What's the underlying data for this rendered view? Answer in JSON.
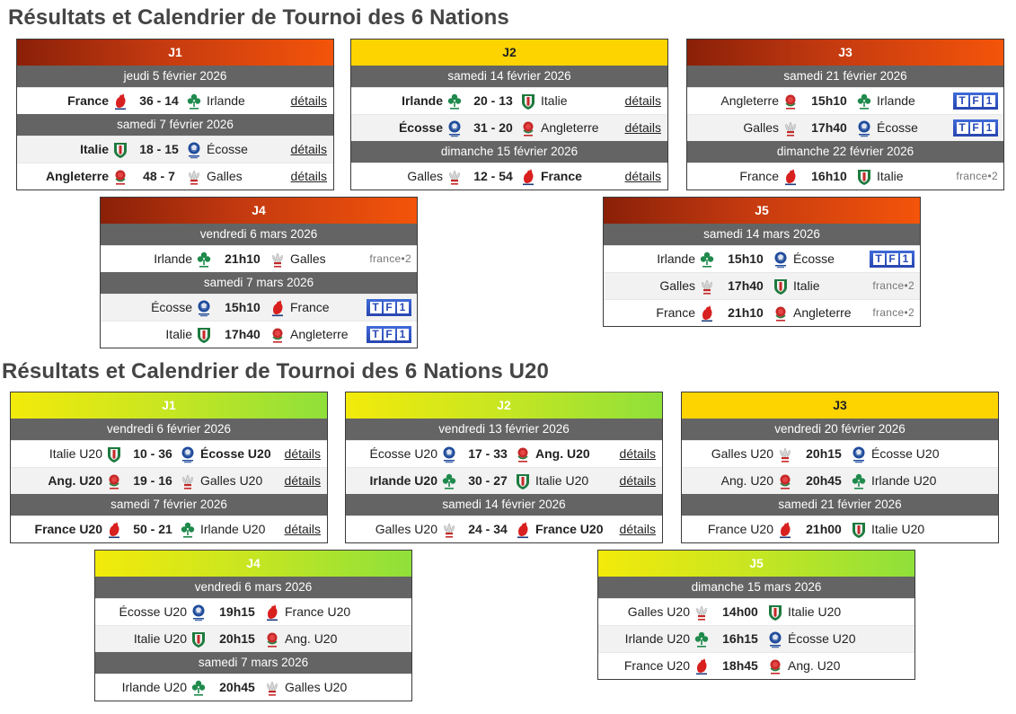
{
  "sections": [
    {
      "title": "Résultats et Calendrier de Tournoi des 6 Nations",
      "blocks": [
        {
          "name": "J1",
          "dates": [
            {
              "date": "jeudi 5 février 2026",
              "matches": [
                {
                  "home": "France",
                  "away": "Irlande",
                  "center": "36 - 14",
                  "win": "home",
                  "action": "détails"
                }
              ]
            },
            {
              "date": "samedi 7 février 2026",
              "matches": [
                {
                  "home": "Italie",
                  "away": "Écosse",
                  "center": "18 - 15",
                  "win": "home",
                  "action": "détails"
                },
                {
                  "home": "Angleterre",
                  "away": "Galles",
                  "center": "48 - 7",
                  "win": "home",
                  "action": "détails"
                }
              ]
            }
          ]
        },
        {
          "name": "J2",
          "dates": [
            {
              "date": "samedi 14 février 2026",
              "matches": [
                {
                  "home": "Irlande",
                  "away": "Italie",
                  "center": "20 - 13",
                  "win": "home",
                  "action": "détails"
                },
                {
                  "home": "Écosse",
                  "away": "Angleterre",
                  "center": "31 - 20",
                  "win": "home",
                  "action": "détails"
                }
              ]
            },
            {
              "date": "dimanche 15 février 2026",
              "matches": [
                {
                  "home": "Galles",
                  "away": "France",
                  "center": "12 - 54",
                  "win": "away",
                  "action": "détails"
                }
              ]
            }
          ]
        },
        {
          "name": "J3",
          "dates": [
            {
              "date": "samedi 21 février 2026",
              "matches": [
                {
                  "home": "Angleterre",
                  "away": "Irlande",
                  "center": "15h10",
                  "tv": "TF1"
                },
                {
                  "home": "Galles",
                  "away": "Écosse",
                  "center": "17h40",
                  "tv": "TF1"
                }
              ]
            },
            {
              "date": "dimanche 22 février 2026",
              "matches": [
                {
                  "home": "France",
                  "away": "Italie",
                  "center": "16h10",
                  "tv": "france•2"
                }
              ]
            }
          ]
        },
        {
          "name": "J4",
          "dates": [
            {
              "date": "vendredi 6 mars 2026",
              "matches": [
                {
                  "home": "Irlande",
                  "away": "Galles",
                  "center": "21h10",
                  "tv": "france•2"
                }
              ]
            },
            {
              "date": "samedi 7 mars 2026",
              "matches": [
                {
                  "home": "Écosse",
                  "away": "France",
                  "center": "15h10",
                  "tv": "TF1"
                },
                {
                  "home": "Italie",
                  "away": "Angleterre",
                  "center": "17h40",
                  "tv": "TF1"
                }
              ]
            }
          ]
        },
        {
          "name": "J5",
          "dates": [
            {
              "date": "samedi 14 mars 2026",
              "matches": [
                {
                  "home": "Irlande",
                  "away": "Écosse",
                  "center": "15h10",
                  "tv": "TF1"
                },
                {
                  "home": "Galles",
                  "away": "Italie",
                  "center": "17h40",
                  "tv": "france•2"
                },
                {
                  "home": "France",
                  "away": "Angleterre",
                  "center": "21h10",
                  "tv": "france•2"
                }
              ]
            }
          ]
        }
      ]
    },
    {
      "title": "Résultats et Calendrier de Tournoi des 6 Nations U20",
      "blocks": [
        {
          "name": "J1",
          "dates": [
            {
              "date": "vendredi 6 février 2026",
              "matches": [
                {
                  "home": "Italie U20",
                  "away": "Écosse U20",
                  "center": "10 - 36",
                  "win": "away",
                  "action": "détails"
                },
                {
                  "home": "Ang. U20",
                  "away": "Galles U20",
                  "center": "19 - 16",
                  "win": "home",
                  "action": "détails"
                }
              ]
            },
            {
              "date": "samedi 7 février 2026",
              "matches": [
                {
                  "home": "France U20",
                  "away": "Irlande U20",
                  "center": "50 - 21",
                  "win": "home",
                  "action": "détails"
                }
              ]
            }
          ]
        },
        {
          "name": "J2",
          "dates": [
            {
              "date": "vendredi 13 février 2026",
              "matches": [
                {
                  "home": "Écosse U20",
                  "away": "Ang. U20",
                  "center": "17 - 33",
                  "win": "away",
                  "action": "détails"
                },
                {
                  "home": "Irlande U20",
                  "away": "Italie U20",
                  "center": "30 - 27",
                  "win": "home",
                  "action": "détails"
                }
              ]
            },
            {
              "date": "samedi 14 février 2026",
              "matches": [
                {
                  "home": "Galles U20",
                  "away": "France U20",
                  "center": "24 - 34",
                  "win": "away",
                  "action": "détails"
                }
              ]
            }
          ]
        },
        {
          "name": "J3",
          "dates": [
            {
              "date": "vendredi 20 février 2026",
              "matches": [
                {
                  "home": "Galles U20",
                  "away": "Écosse U20",
                  "center": "20h15"
                },
                {
                  "home": "Ang. U20",
                  "away": "Irlande U20",
                  "center": "20h45"
                }
              ]
            },
            {
              "date": "samedi 21 février 2026",
              "matches": [
                {
                  "home": "France U20",
                  "away": "Italie U20",
                  "center": "21h00"
                }
              ]
            }
          ]
        },
        {
          "name": "J4",
          "dates": [
            {
              "date": "vendredi 6 mars 2026",
              "matches": [
                {
                  "home": "Écosse U20",
                  "away": "France U20",
                  "center": "19h15"
                },
                {
                  "home": "Italie U20",
                  "away": "Ang. U20",
                  "center": "20h15"
                }
              ]
            },
            {
              "date": "samedi 7 mars 2026",
              "matches": [
                {
                  "home": "Irlande U20",
                  "away": "Galles U20",
                  "center": "20h45"
                }
              ]
            }
          ]
        },
        {
          "name": "J5",
          "dates": [
            {
              "date": "dimanche 15 mars 2026",
              "matches": [
                {
                  "home": "Galles U20",
                  "away": "Italie U20",
                  "center": "14h00"
                },
                {
                  "home": "Irlande U20",
                  "away": "Écosse U20",
                  "center": "16h15"
                },
                {
                  "home": "France U20",
                  "away": "Ang. U20",
                  "center": "18h45"
                }
              ]
            }
          ]
        }
      ]
    }
  ],
  "team_crests": {
    "France": "rooster-icon",
    "Irlande": "shamrock-icon",
    "Italie": "italy-shield-icon",
    "Écosse": "thistle-icon",
    "Angleterre": "rose-icon",
    "Galles": "feathers-icon"
  },
  "colors": {
    "header_red": "#e0480c",
    "header_yellow": "#fdd400",
    "header_yellowgreen": "#b8e22c",
    "date_bar": "#646464"
  }
}
